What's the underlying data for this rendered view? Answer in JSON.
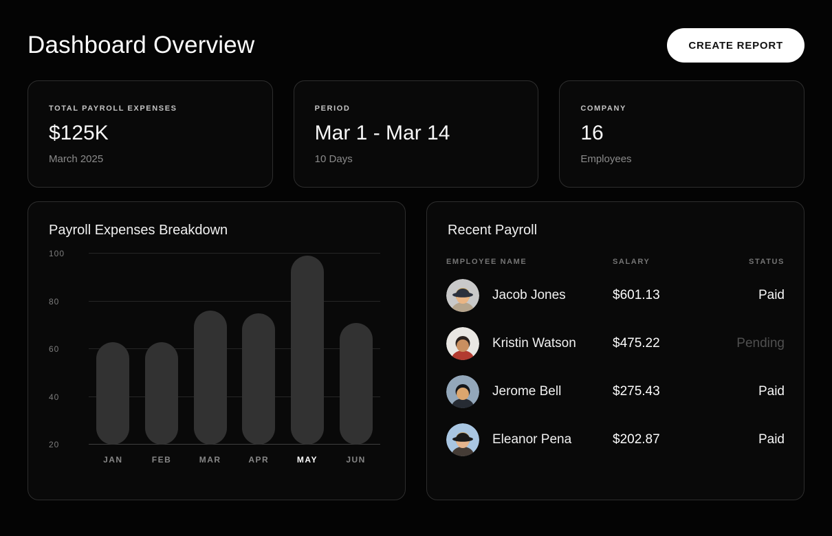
{
  "page": {
    "title": "Dashboard Overview"
  },
  "header": {
    "create_report_label": "CREATE REPORT"
  },
  "stats": [
    {
      "label": "TOTAL PAYROLL EXPENSES",
      "value": "$125K",
      "sub": "March 2025"
    },
    {
      "label": "PERIOD",
      "value": "Mar 1 - Mar 14",
      "sub": "10 Days"
    },
    {
      "label": "COMPANY",
      "value": "16",
      "sub": "Employees"
    }
  ],
  "chart_data": {
    "type": "bar",
    "title": "Payroll Expenses Breakdown",
    "categories": [
      "JAN",
      "FEB",
      "MAR",
      "APR",
      "MAY",
      "JUN"
    ],
    "values": [
      63,
      63,
      76,
      75,
      99,
      71
    ],
    "highlight_category": "MAY",
    "y_ticks": [
      20,
      40,
      60,
      80,
      100
    ],
    "ylim": [
      20,
      100
    ],
    "grid": true,
    "legend": "none",
    "bar_color": "#323232",
    "xlabel": "",
    "ylabel": ""
  },
  "table": {
    "title": "Recent Payroll",
    "columns": [
      "EMPLOYEE NAME",
      "SALARY",
      "STATUS"
    ],
    "rows": [
      {
        "name": "Jacob Jones",
        "salary": "$601.13",
        "status": "Paid",
        "status_muted": false,
        "avatar": {
          "bg": "#c9c9c9",
          "shirt": "#b5a48c",
          "hair": "#d2aa5e",
          "skin": "#eab584",
          "hat": "#2b313d"
        }
      },
      {
        "name": "Kristin Watson",
        "salary": "$475.22",
        "status": "Pending",
        "status_muted": true,
        "avatar": {
          "bg": "#e9e7e3",
          "shirt": "#b23b30",
          "hair": "#2a211d",
          "skin": "#c98f60",
          "hat": null
        }
      },
      {
        "name": "Jerome Bell",
        "salary": "$275.43",
        "status": "Paid",
        "status_muted": false,
        "avatar": {
          "bg": "#93a7ba",
          "shirt": "#262b33",
          "hair": "#14161a",
          "skin": "#dca66e",
          "hat": null
        }
      },
      {
        "name": "Eleanor Pena",
        "salary": "$202.87",
        "status": "Paid",
        "status_muted": false,
        "avatar": {
          "bg": "#a9c6e2",
          "shirt": "#453c36",
          "hair": "#c9a468",
          "skin": "#e6b58d",
          "hat": "#1a1a1a"
        }
      }
    ]
  },
  "colors": {
    "background": "#040404",
    "card_background": "#090909",
    "card_border": "#2e2e2e",
    "bar": "#323232",
    "gridline": "#272727",
    "text_primary": "#f5f5f5",
    "text_muted": "#8a8a8a",
    "status_paid": "#f5f5f5",
    "status_pending": "#4f4f4f",
    "button_background": "#ffffff",
    "button_text": "#111111",
    "highlight_month_label": "#ffffff"
  }
}
